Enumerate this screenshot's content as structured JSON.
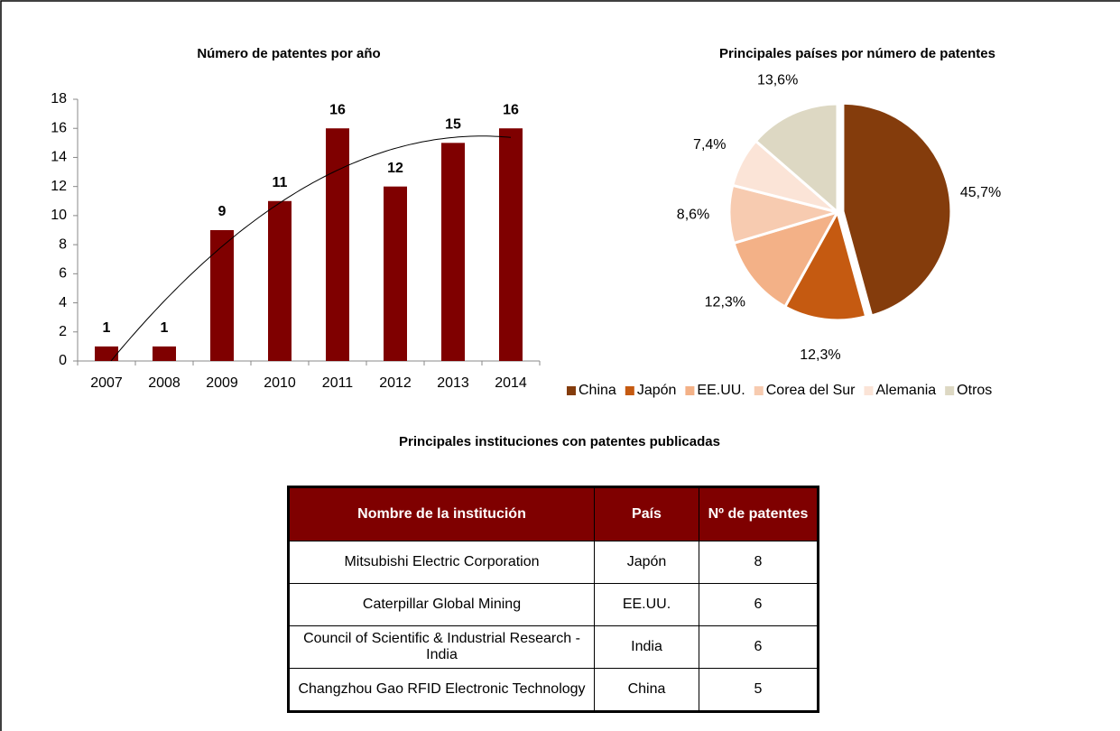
{
  "chart_data": [
    {
      "type": "bar",
      "title": "Número de patentes por año",
      "categories": [
        "2007",
        "2008",
        "2009",
        "2010",
        "2011",
        "2012",
        "2013",
        "2014"
      ],
      "values": [
        1,
        1,
        9,
        11,
        16,
        12,
        15,
        16
      ],
      "color": "#7f0000",
      "ylim": [
        0,
        18
      ],
      "yticks": [
        0,
        2,
        4,
        6,
        8,
        10,
        12,
        14,
        16,
        18
      ],
      "trendline": {
        "type": "polynomial",
        "order": 2
      }
    },
    {
      "type": "pie",
      "title": "Principales países por número de patentes",
      "categories": [
        "China",
        "Japón",
        "EE.UU.",
        "Corea del Sur",
        "Alemania",
        "Otros"
      ],
      "values": [
        45.7,
        12.3,
        12.3,
        8.6,
        7.4,
        13.6
      ],
      "value_labels": [
        "45,7%",
        "12,3%",
        "12,3%",
        "8,6%",
        "7,4%",
        "13,6%"
      ],
      "colors": [
        "#843c0c",
        "#c55a11",
        "#f3b187",
        "#f7cbb0",
        "#fbe4d7",
        "#ddd8c3"
      ],
      "legend": "bottom"
    }
  ],
  "table": {
    "title": "Principales instituciones con patentes publicadas",
    "header": [
      "Nombre de la institución",
      "País",
      "Nº de patentes"
    ],
    "rows": [
      [
        "Mitsubishi Electric Corporation",
        "Japón",
        "8"
      ],
      [
        "Caterpillar Global Mining",
        "EE.UU.",
        "6"
      ],
      [
        "Council of Scientific & Industrial Research - India",
        "India",
        "6"
      ],
      [
        "Changzhou Gao RFID Electronic Technology",
        "China",
        "5"
      ]
    ]
  }
}
